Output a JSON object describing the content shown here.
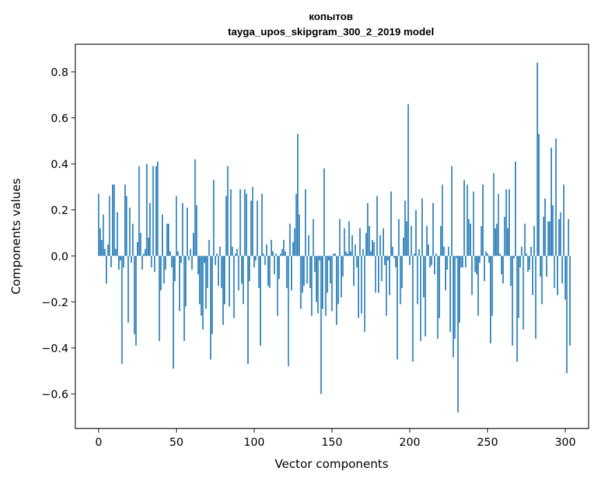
{
  "chart_data": {
    "type": "bar",
    "title_line1": "копытов",
    "title_line2": "tayga_upos_skipgram_300_2_2019 model",
    "xlabel": "Vector components",
    "ylabel": "Components values",
    "xlim": [
      -15,
      315
    ],
    "ylim": [
      -0.75,
      0.92
    ],
    "xticks": [
      0,
      50,
      100,
      150,
      200,
      250,
      300
    ],
    "xtick_labels": [
      "0",
      "50",
      "100",
      "150",
      "200",
      "250",
      "300"
    ],
    "yticks": [
      -0.6,
      -0.4,
      -0.2,
      0.0,
      0.2,
      0.4,
      0.6,
      0.8
    ],
    "ytick_labels": [
      "−0.6",
      "−0.4",
      "−0.2",
      "0.0",
      "0.2",
      "0.4",
      "0.6",
      "0.8"
    ],
    "bar_color": "#1f77b4",
    "values": [
      0.27,
      0.12,
      0.07,
      0.18,
      0.03,
      -0.12,
      0.05,
      0.26,
      -0.05,
      0.31,
      0.31,
      0.03,
      0.19,
      -0.06,
      -0.02,
      -0.47,
      -0.05,
      0.31,
      0.26,
      -0.29,
      0.21,
      -0.03,
      0.14,
      -0.34,
      -0.39,
      0.06,
      0.39,
      0.1,
      -0.06,
      0.01,
      0.03,
      0.4,
      0.08,
      0.23,
      -0.05,
      0.39,
      -0.07,
      0.39,
      0.41,
      -0.37,
      -0.15,
      0.18,
      -0.12,
      -0.06,
      0.14,
      0.14,
      0.02,
      -0.05,
      -0.49,
      -0.11,
      0.26,
      0.02,
      -0.24,
      -0.03,
      0.23,
      -0.37,
      -0.22,
      0.21,
      -0.02,
      0.03,
      -0.06,
      0.1,
      0.42,
      0.22,
      -0.08,
      -0.21,
      -0.26,
      -0.32,
      -0.03,
      -0.23,
      -0.14,
      0.07,
      -0.45,
      -0.34,
      0.33,
      -0.04,
      0.01,
      -0.13,
      0.04,
      -0.14,
      -0.3,
      -0.21,
      0.26,
      0.39,
      -0.22,
      0.29,
      0.04,
      -0.27,
      0.01,
      0.03,
      -0.15,
      0.29,
      -0.12,
      -0.21,
      0.29,
      0.27,
      -0.47,
      -0.11,
      0.24,
      0.3,
      -0.05,
      -0.02,
      0.24,
      -0.14,
      -0.39,
      0.27,
      0.01,
      -0.04,
      0.05,
      -0.13,
      -0.14,
      0.07,
      0.02,
      -0.08,
      0.01,
      -0.26,
      -0.1,
      0.01,
      0.03,
      0.07,
      0.02,
      -0.14,
      -0.48,
      0.14,
      -0.15,
      0.06,
      0.12,
      0.27,
      0.53,
      0.18,
      -0.23,
      -0.16,
      -0.13,
      0.29,
      -0.12,
      0.09,
      -0.14,
      -0.26,
      0.16,
      -0.07,
      -0.2,
      -0.25,
      -0.02,
      -0.6,
      -0.23,
      0.38,
      -0.26,
      -0.16,
      -0.02,
      -0.12,
      -0.24,
      0.01,
      0.01,
      -0.3,
      -0.21,
      0.16,
      -0.18,
      -0.09,
      0.12,
      0.02,
      0.01,
      0.15,
      0.02,
      0.09,
      -0.13,
      0.05,
      -0.05,
      -0.27,
      0.12,
      -0.25,
      0.03,
      -0.33,
      0.1,
      0.23,
      0.13,
      0.02,
      0.07,
      0.06,
      -0.16,
      0.26,
      -0.16,
      0.09,
      -0.11,
      0.12,
      -0.04,
      -0.26,
      -0.02,
      -0.17,
      0.28,
      0.04,
      -0.01,
      -0.05,
      -0.45,
      0.16,
      -0.21,
      -0.14,
      0.08,
      0.24,
      0.15,
      0.66,
      -0.04,
      0.13,
      -0.46,
      0.01,
      0.2,
      -0.21,
      0.03,
      -0.37,
      0.25,
      -0.18,
      -0.35,
      0.13,
      0.05,
      -0.05,
      -0.04,
      0.23,
      -0.08,
      0.01,
      -0.36,
      -0.27,
      0.13,
      0.31,
      0.04,
      -0.15,
      -0.06,
      0.04,
      -0.33,
      0.39,
      -0.44,
      -0.36,
      -0.01,
      -0.68,
      -0.29,
      -0.05,
      -0.05,
      0.33,
      -0.05,
      0.31,
      0.16,
      0.14,
      -0.17,
      0.28,
      -0.07,
      -0.08,
      -0.26,
      -0.03,
      0.13,
      0.31,
      -0.11,
      0.02,
      0.01,
      -0.03,
      -0.38,
      -0.26,
      0.36,
      0.12,
      0.14,
      0.27,
      0.01,
      -0.08,
      -0.12,
      0.17,
      0.29,
      0.12,
      0.29,
      -0.13,
      -0.39,
      -0.01,
      0.41,
      -0.46,
      -0.27,
      -0.05,
      0.04,
      -0.32,
      0.14,
      0.01,
      -0.07,
      -0.06,
      0.04,
      -0.17,
      0.13,
      -0.36,
      0.84,
      0.53,
      -0.09,
      -0.21,
      0.17,
      0.25,
      -0.09,
      0.15,
      0.15,
      0.47,
      0.22,
      -0.14,
      0.51,
      -0.17,
      0.16,
      0.19,
      -0.12,
      0.31,
      -0.19,
      -0.51,
      0.16,
      -0.39
    ]
  }
}
